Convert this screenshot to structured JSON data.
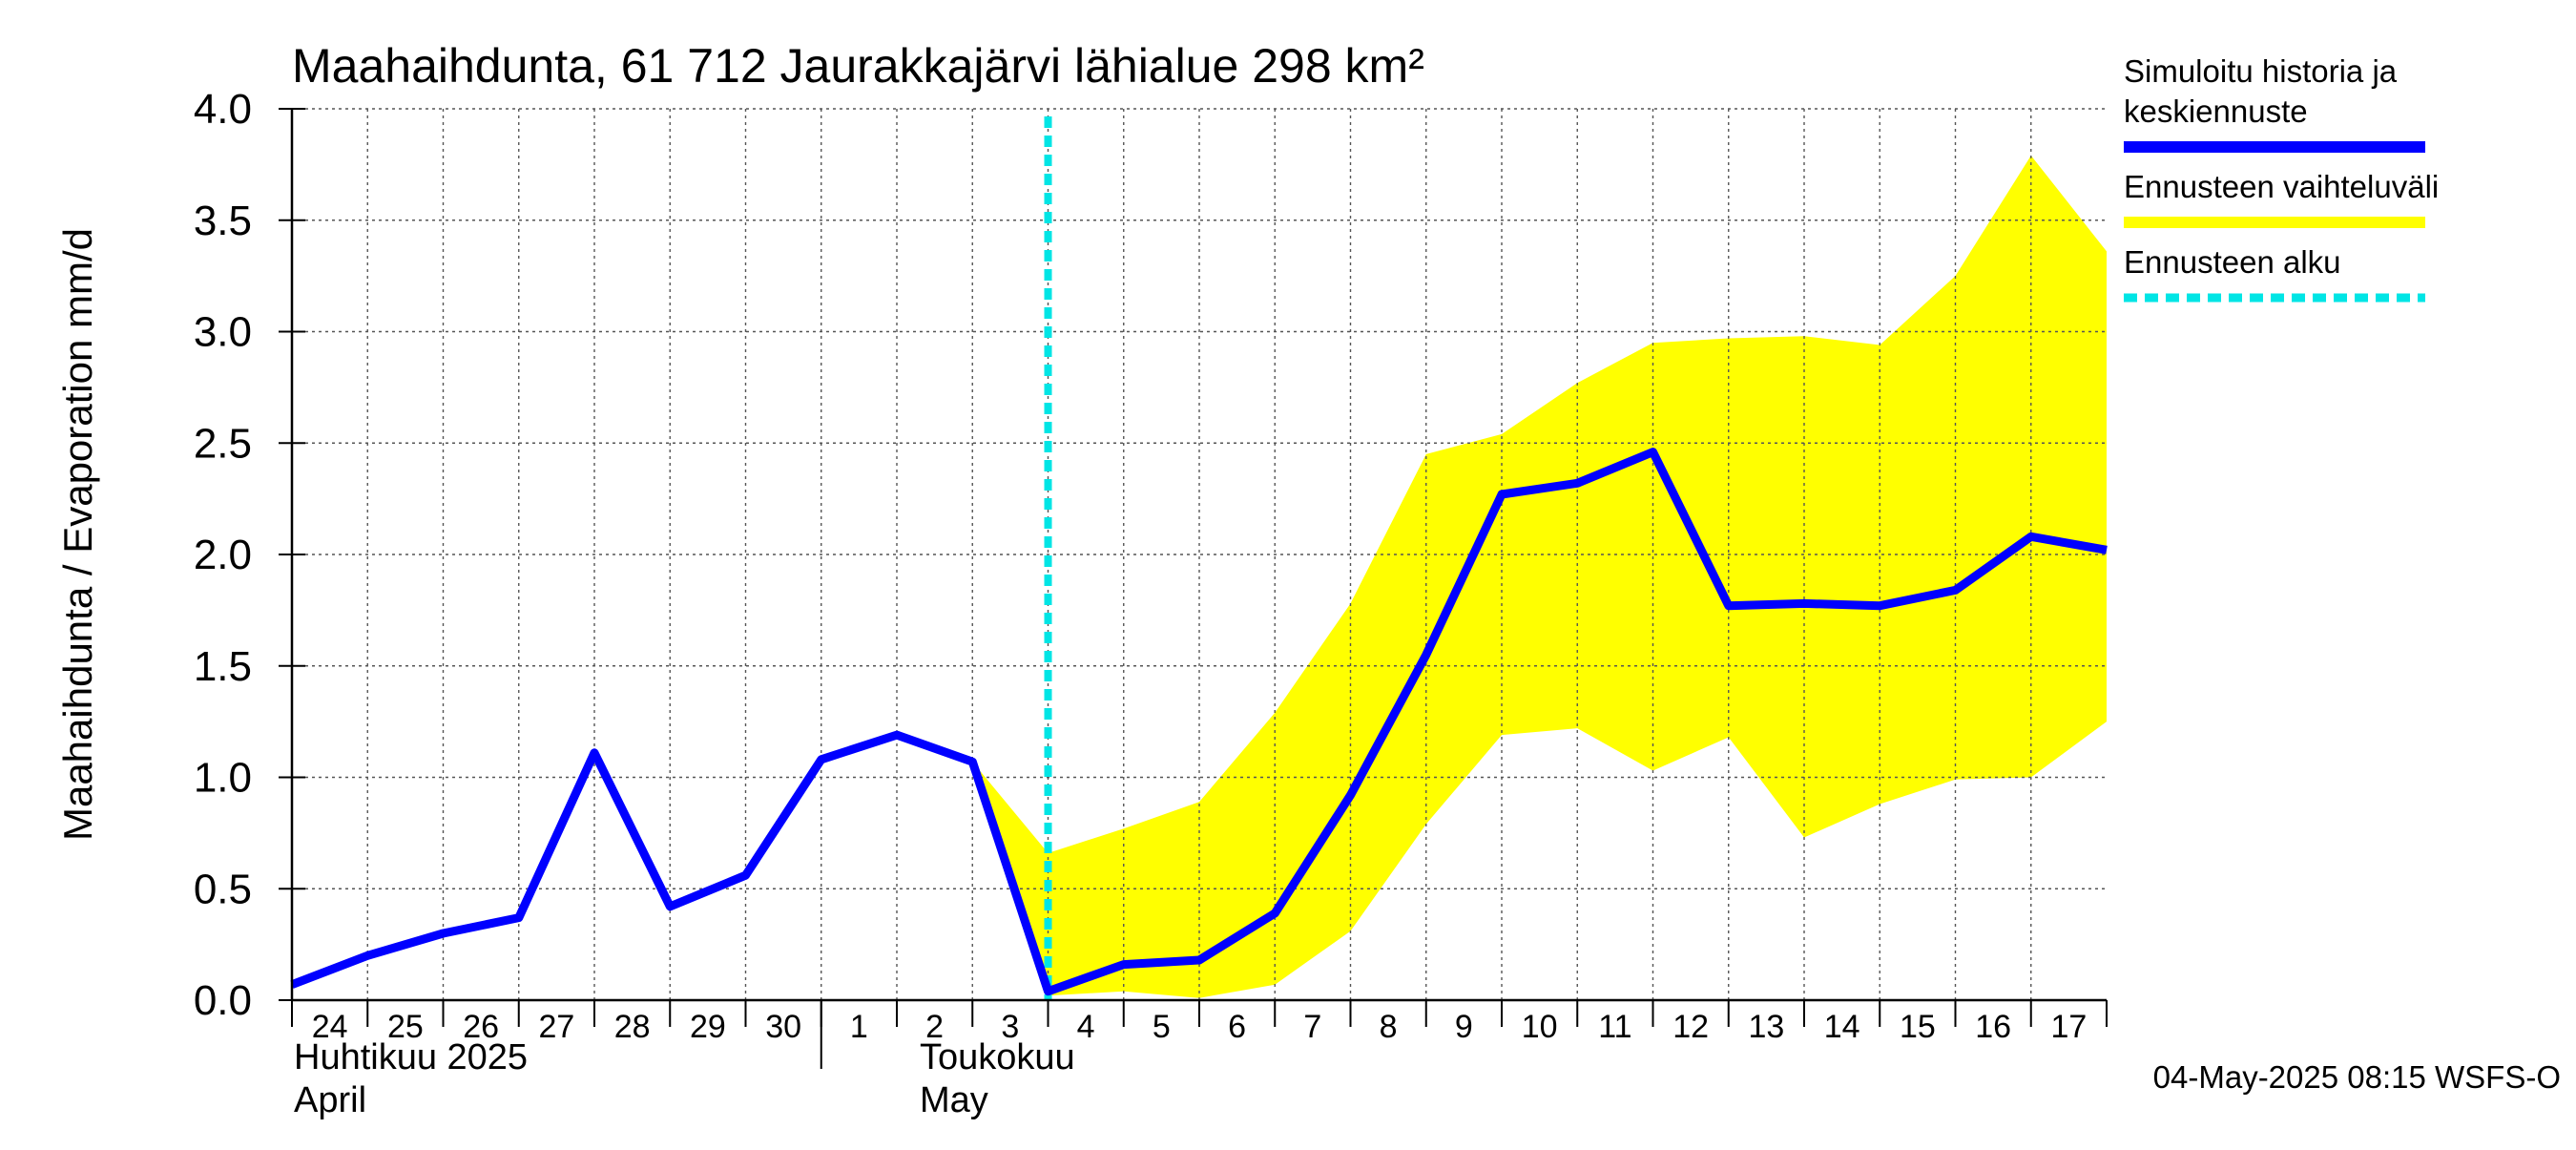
{
  "chart_data": {
    "type": "line",
    "title": "Maahaihdunta, 61 712 Jaurakkajärvi lähialue 298 km²",
    "ylabel": "Maahaihdunta / Evaporation   mm/d",
    "ylim": [
      0,
      4
    ],
    "yticks": [
      "0.0",
      "0.5",
      "1.0",
      "1.5",
      "2.0",
      "2.5",
      "3.0",
      "3.5",
      "4.0"
    ],
    "grid": true,
    "x_day_labels": [
      "24",
      "25",
      "26",
      "27",
      "28",
      "29",
      "30",
      "1",
      "2",
      "3",
      "4",
      "5",
      "6",
      "7",
      "8",
      "9",
      "10",
      "11",
      "12",
      "13",
      "14",
      "15",
      "16",
      "17"
    ],
    "months": [
      {
        "fi": "Huhtikuu  2025",
        "en": "April"
      },
      {
        "fi": "Toukokuu",
        "en": "May"
      }
    ],
    "x_start": "2025-04-24",
    "x_end": "2025-05-18",
    "series": [
      {
        "name": "Simuloitu historia ja keskiennuste",
        "color": "#0000ff",
        "points": [
          {
            "x": "2025-04-24",
            "y": 0.07
          },
          {
            "x": "2025-04-25",
            "y": 0.2
          },
          {
            "x": "2025-04-26",
            "y": 0.3
          },
          {
            "x": "2025-04-27",
            "y": 0.37
          },
          {
            "x": "2025-04-28",
            "y": 1.11
          },
          {
            "x": "2025-04-29",
            "y": 0.42
          },
          {
            "x": "2025-04-30",
            "y": 0.56
          },
          {
            "x": "2025-05-01",
            "y": 1.08
          },
          {
            "x": "2025-05-02",
            "y": 1.19
          },
          {
            "x": "2025-05-03",
            "y": 1.07
          },
          {
            "x": "2025-05-04",
            "y": 0.04
          },
          {
            "x": "2025-05-05",
            "y": 0.16
          },
          {
            "x": "2025-05-06",
            "y": 0.18
          },
          {
            "x": "2025-05-07",
            "y": 0.39
          },
          {
            "x": "2025-05-08",
            "y": 0.92
          },
          {
            "x": "2025-05-09",
            "y": 1.55
          },
          {
            "x": "2025-05-10",
            "y": 2.27
          },
          {
            "x": "2025-05-11",
            "y": 2.32
          },
          {
            "x": "2025-05-12",
            "y": 2.46
          },
          {
            "x": "2025-05-13",
            "y": 1.77
          },
          {
            "x": "2025-05-14",
            "y": 1.78
          },
          {
            "x": "2025-05-15",
            "y": 1.77
          },
          {
            "x": "2025-05-16",
            "y": 1.84
          },
          {
            "x": "2025-05-17",
            "y": 2.08
          },
          {
            "x": "2025-05-18",
            "y": 2.02
          }
        ]
      }
    ],
    "band": {
      "name": "Ennusteen vaihteluväli",
      "color": "#ffff00",
      "points": [
        {
          "x": "2025-05-03",
          "low": 1.07,
          "high": 1.07
        },
        {
          "x": "2025-05-04",
          "low": 0.02,
          "high": 0.66
        },
        {
          "x": "2025-05-05",
          "low": 0.04,
          "high": 0.77
        },
        {
          "x": "2025-05-06",
          "low": 0.01,
          "high": 0.89
        },
        {
          "x": "2025-05-07",
          "low": 0.07,
          "high": 1.29
        },
        {
          "x": "2025-05-08",
          "low": 0.31,
          "high": 1.78
        },
        {
          "x": "2025-05-09",
          "low": 0.79,
          "high": 2.45
        },
        {
          "x": "2025-05-10",
          "low": 1.19,
          "high": 2.54
        },
        {
          "x": "2025-05-11",
          "low": 1.22,
          "high": 2.77
        },
        {
          "x": "2025-05-12",
          "low": 1.03,
          "high": 2.95
        },
        {
          "x": "2025-05-13",
          "low": 1.18,
          "high": 2.97
        },
        {
          "x": "2025-05-14",
          "low": 0.73,
          "high": 2.98
        },
        {
          "x": "2025-05-15",
          "low": 0.88,
          "high": 2.94
        },
        {
          "x": "2025-05-16",
          "low": 0.99,
          "high": 3.25
        },
        {
          "x": "2025-05-17",
          "low": 1.0,
          "high": 3.79
        },
        {
          "x": "2025-05-18",
          "low": 1.25,
          "high": 3.36
        }
      ]
    },
    "forecast_start": {
      "name": "Ennusteen alku",
      "x": "2025-05-04",
      "color": "#00e5e5"
    },
    "legend": [
      {
        "lines": [
          "Simuloitu historia ja",
          "keskiennuste"
        ],
        "color": "#0000ff",
        "style": "solid"
      },
      {
        "lines": [
          "Ennusteen vaihteluväli"
        ],
        "color": "#ffff00",
        "style": "solid"
      },
      {
        "lines": [
          "Ennusteen alku"
        ],
        "color": "#00e5e5",
        "style": "dashed"
      }
    ],
    "legend_position": "right"
  },
  "footer": "04-May-2025 08:15 WSFS-O"
}
